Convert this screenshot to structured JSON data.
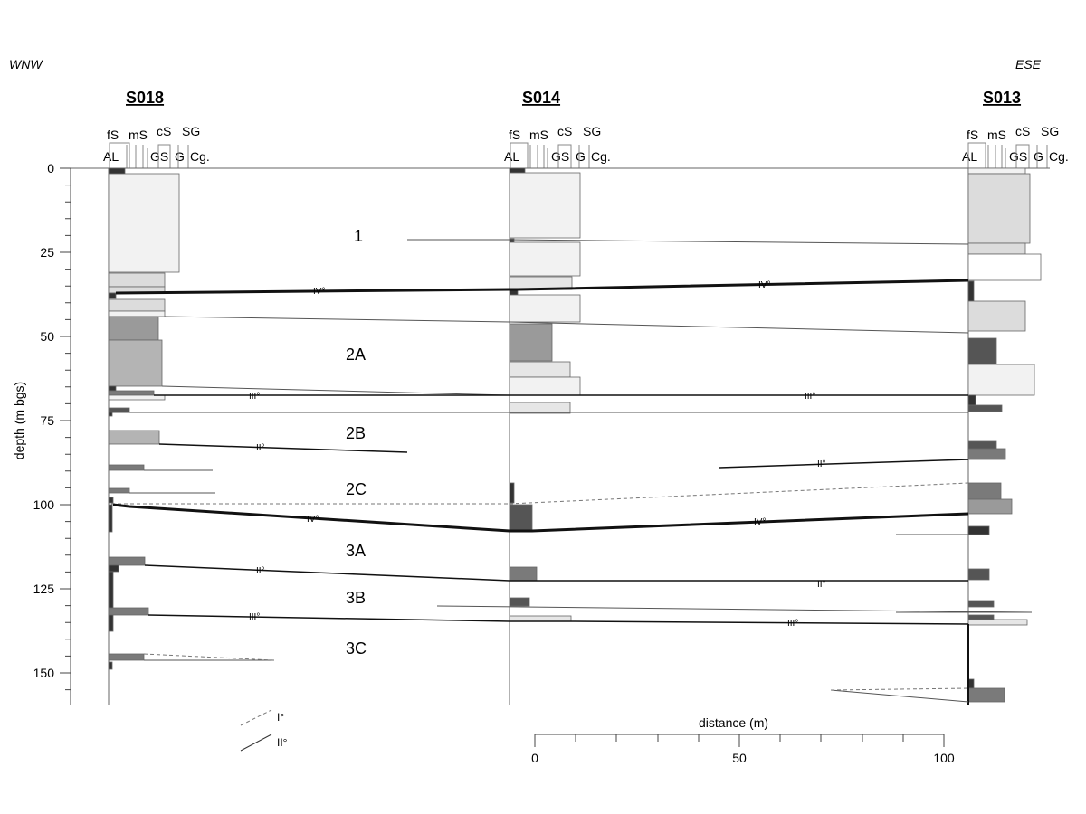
{
  "orientation": {
    "left": "WNW",
    "right": "ESE"
  },
  "depth_axis": {
    "label": "depth (m bgs)",
    "ticks": [
      "0",
      "25",
      "50",
      "75",
      "100",
      "125",
      "150"
    ],
    "range_m": [
      0,
      160
    ]
  },
  "grain_scale": {
    "top_labels": [
      "fS",
      "mS",
      "cS",
      "SG"
    ],
    "bottom_labels": [
      "AL",
      "GS",
      "G",
      "Cg."
    ]
  },
  "boreholes": [
    {
      "id": "S018"
    },
    {
      "id": "S014"
    },
    {
      "id": "S013"
    }
  ],
  "units": [
    "1",
    "2A",
    "2B",
    "2C",
    "3A",
    "3B",
    "3C"
  ],
  "surface_labels": [
    "IV°",
    "IV°",
    "III°",
    "III°",
    "II°",
    "II°",
    "IV°",
    "IV°",
    "II°",
    "II°",
    "III°",
    "III°"
  ],
  "legend": [
    {
      "label": "I°",
      "style": "dashed"
    },
    {
      "label": "II°",
      "style": "solid"
    }
  ],
  "distance_scale": {
    "label": "distance (m)",
    "ticks": [
      "0",
      "50",
      "100"
    ],
    "range_m": [
      0,
      100
    ]
  },
  "colors": {
    "line": "#111111",
    "grid": "#666666",
    "fill_lightest": "#f2f2f2",
    "fill_light": "#dcdcdc",
    "fill_mid": "#b4b4b4",
    "fill_dark": "#7a7a7a",
    "fill_darkest": "#333333"
  }
}
